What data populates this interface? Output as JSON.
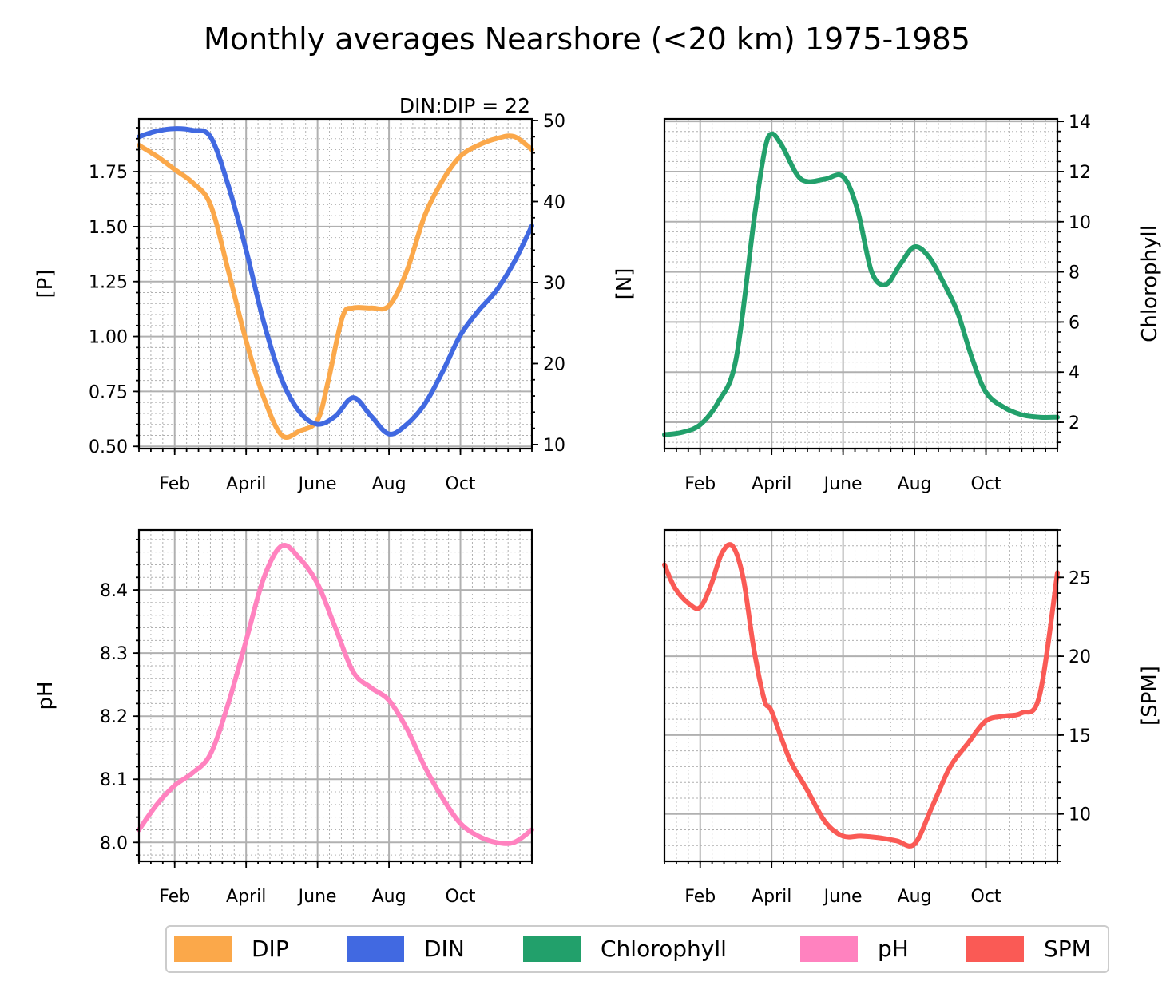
{
  "title": "Monthly averages Nearshore (<20 km) 1975-1985",
  "colors": {
    "DIP": "#fba84a",
    "DIN": "#4169e1",
    "Chlorophyll": "#22a06b",
    "pH": "#ff82bf",
    "SPM": "#fa5a55"
  },
  "legend": [
    {
      "name": "DIP",
      "color_key": "DIP"
    },
    {
      "name": "DIN",
      "color_key": "DIN"
    },
    {
      "name": "Chlorophyll",
      "color_key": "Chlorophyll"
    },
    {
      "name": "pH",
      "color_key": "pH"
    },
    {
      "name": "SPM",
      "color_key": "SPM"
    }
  ],
  "chart_data": [
    {
      "type": "line",
      "panel": "top-left",
      "annotation": "DIN:DIP = 22",
      "x_tick_labels": [
        "Feb",
        "April",
        "June",
        "Aug",
        "Oct"
      ],
      "x_ticks": [
        2,
        4,
        6,
        8,
        10
      ],
      "xlim": [
        1,
        12
      ],
      "left_axis": {
        "label": "[P]",
        "ylim": [
          0.49,
          1.99
        ],
        "ticks": [
          0.5,
          0.75,
          1.0,
          1.25,
          1.5,
          1.75
        ],
        "tick_labels": [
          "0.50",
          "0.75",
          "1.00",
          "1.25",
          "1.50",
          "1.75"
        ]
      },
      "right_axis": {
        "label": "[N]",
        "ylim": [
          9.5,
          50.2
        ],
        "ticks": [
          10,
          20,
          30,
          40,
          50
        ],
        "tick_labels": [
          "10",
          "20",
          "30",
          "40",
          "50"
        ]
      },
      "series": [
        {
          "name": "DIP",
          "axis": "left",
          "color_key": "DIP",
          "x": [
            1,
            1.5,
            2,
            2.5,
            3,
            3.5,
            4,
            4.5,
            5,
            5.5,
            6,
            6.3,
            6.7,
            7,
            7.5,
            8,
            8.5,
            9,
            9.5,
            10,
            10.5,
            11,
            11.5,
            12
          ],
          "y": [
            1.87,
            1.82,
            1.76,
            1.7,
            1.6,
            1.3,
            0.98,
            0.72,
            0.55,
            0.57,
            0.62,
            0.8,
            1.09,
            1.13,
            1.13,
            1.14,
            1.3,
            1.55,
            1.71,
            1.82,
            1.87,
            1.9,
            1.91,
            1.85
          ]
        },
        {
          "name": "DIN",
          "axis": "right",
          "color_key": "DIN",
          "x": [
            1,
            1.5,
            2,
            2.5,
            3,
            3.5,
            4,
            4.5,
            5,
            5.5,
            6,
            6.5,
            7,
            7.5,
            8,
            8.5,
            9,
            9.5,
            10,
            10.5,
            11,
            11.5,
            12
          ],
          "y": [
            48,
            48.7,
            49,
            48.8,
            48,
            42,
            34,
            25,
            18,
            14,
            12.5,
            13.5,
            15.8,
            13.5,
            11.3,
            12.5,
            15,
            19,
            23.5,
            26.5,
            29,
            32.5,
            37
          ]
        }
      ]
    },
    {
      "type": "line",
      "panel": "top-right",
      "x_tick_labels": [
        "Feb",
        "April",
        "June",
        "Aug",
        "Oct"
      ],
      "x_ticks": [
        2,
        4,
        6,
        8,
        10
      ],
      "xlim": [
        1,
        12
      ],
      "right_axis": {
        "label": "Chlorophyll",
        "ylim": [
          0.95,
          14.1
        ],
        "ticks": [
          2,
          4,
          6,
          8,
          10,
          12,
          14
        ],
        "tick_labels": [
          "2",
          "4",
          "6",
          "8",
          "10",
          "12",
          "14"
        ]
      },
      "series": [
        {
          "name": "Chlorophyll",
          "axis": "right",
          "color_key": "Chlorophyll",
          "x": [
            1,
            1.5,
            2,
            2.5,
            3,
            3.5,
            3.8,
            4,
            4.3,
            4.7,
            5,
            5.5,
            6,
            6.4,
            6.8,
            7.2,
            7.6,
            8,
            8.4,
            8.8,
            9.2,
            9.6,
            10,
            10.5,
            11,
            11.5,
            12
          ],
          "y": [
            1.5,
            1.6,
            1.9,
            2.8,
            4.5,
            10.0,
            12.8,
            13.5,
            13.0,
            11.9,
            11.6,
            11.7,
            11.8,
            10.5,
            8.0,
            7.5,
            8.3,
            9.0,
            8.6,
            7.6,
            6.4,
            4.6,
            3.2,
            2.6,
            2.3,
            2.2,
            2.2
          ]
        }
      ]
    },
    {
      "type": "line",
      "panel": "bottom-left",
      "x_tick_labels": [
        "Feb",
        "April",
        "June",
        "Aug",
        "Oct"
      ],
      "x_ticks": [
        2,
        4,
        6,
        8,
        10
      ],
      "xlim": [
        1,
        12
      ],
      "left_axis": {
        "label": "pH",
        "ylim": [
          7.97,
          8.495
        ],
        "ticks": [
          8.0,
          8.1,
          8.2,
          8.3,
          8.4
        ],
        "tick_labels": [
          "8.0",
          "8.1",
          "8.2",
          "8.3",
          "8.4"
        ]
      },
      "series": [
        {
          "name": "pH",
          "axis": "left",
          "color_key": "pH",
          "x": [
            1,
            1.5,
            2,
            2.5,
            3,
            3.5,
            4,
            4.5,
            5,
            5.5,
            6,
            6.5,
            7,
            7.5,
            8,
            8.5,
            9,
            9.5,
            10,
            10.5,
            11,
            11.5,
            12
          ],
          "y": [
            8.02,
            8.06,
            8.09,
            8.11,
            8.14,
            8.22,
            8.32,
            8.42,
            8.47,
            8.45,
            8.41,
            8.34,
            8.27,
            8.245,
            8.225,
            8.18,
            8.12,
            8.07,
            8.03,
            8.01,
            8.0,
            8.0,
            8.02
          ]
        }
      ]
    },
    {
      "type": "line",
      "panel": "bottom-right",
      "x_tick_labels": [
        "Feb",
        "April",
        "June",
        "Aug",
        "Oct"
      ],
      "x_ticks": [
        2,
        4,
        6,
        8,
        10
      ],
      "xlim": [
        1,
        12
      ],
      "right_axis": {
        "label": "[SPM]",
        "ylim": [
          7.0,
          28.0
        ],
        "ticks": [
          10,
          15,
          20,
          25
        ],
        "tick_labels": [
          "10",
          "15",
          "20",
          "25"
        ]
      },
      "series": [
        {
          "name": "SPM",
          "axis": "right",
          "color_key": "SPM",
          "x": [
            1,
            1.3,
            1.7,
            2,
            2.3,
            2.6,
            2.9,
            3.2,
            3.5,
            3.8,
            4,
            4.5,
            5,
            5.5,
            6,
            6.5,
            7,
            7.5,
            8,
            8.5,
            9,
            9.5,
            10,
            10.5,
            11,
            11.5,
            12
          ],
          "y": [
            25.8,
            24.3,
            23.3,
            23.1,
            24.5,
            26.5,
            27.0,
            25.0,
            20.5,
            17.2,
            16.5,
            13.5,
            11.5,
            9.5,
            8.6,
            8.6,
            8.5,
            8.3,
            8.1,
            10.5,
            13.0,
            14.5,
            15.9,
            16.2,
            16.4,
            17.5,
            25.3
          ]
        }
      ]
    }
  ]
}
